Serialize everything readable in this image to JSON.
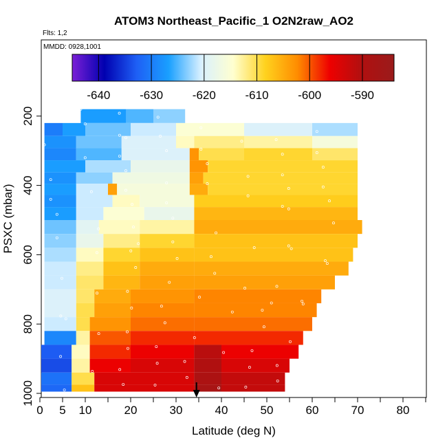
{
  "chart_data": {
    "type": "heatmap",
    "title": "ATOM3 Northeast_Pacific_1 O2N2raw_AO2",
    "subtitle_flights": "Flts: 1,2",
    "subtitle_dates": "MMDD: 0928,1001",
    "xlabel": "Latitude (deg N)",
    "ylabel": "PSXC (mbar)",
    "xlim": [
      0,
      85
    ],
    "ylim": [
      1000,
      0
    ],
    "x_ticks": [
      0,
      5,
      10,
      20,
      30,
      40,
      50,
      60,
      70,
      80
    ],
    "x_minor_ticks": [
      15,
      25,
      35,
      45,
      55,
      65,
      75,
      85
    ],
    "y_ticks": [
      200,
      400,
      600,
      800,
      1000
    ],
    "colorbar": {
      "range": [
        -645,
        -584
      ],
      "ticks": [
        -640,
        -630,
        -620,
        -610,
        -600,
        -590
      ],
      "colors": [
        "#7b1fd6",
        "#0000b0",
        "#1e5ff5",
        "#1aa0ff",
        "#d8f0ff",
        "#ffffd0",
        "#ffd21e",
        "#ff8c00",
        "#ee0000",
        "#b01010",
        "#9a1b1b"
      ]
    },
    "marker": {
      "label": "arrow",
      "x": 34.5
    },
    "rows": [
      {
        "p": 200,
        "segments": [
          [
            9,
            19,
            -627
          ],
          [
            19,
            25,
            -625
          ],
          [
            25,
            32,
            -623
          ]
        ]
      },
      {
        "p": 240,
        "segments": [
          [
            1,
            5,
            -630
          ],
          [
            5,
            10,
            -627
          ],
          [
            10,
            20,
            -624
          ],
          [
            20,
            30,
            -621
          ],
          [
            30,
            45,
            -615
          ],
          [
            45,
            60,
            -620
          ],
          [
            60,
            70,
            -622
          ]
        ]
      },
      {
        "p": 275,
        "segments": [
          [
            1,
            8,
            -628
          ],
          [
            8,
            18,
            -624
          ],
          [
            18,
            30,
            -620
          ],
          [
            30,
            34,
            -614
          ],
          [
            34,
            45,
            -612
          ],
          [
            45,
            60,
            -613
          ],
          [
            60,
            70,
            -616
          ]
        ]
      },
      {
        "p": 310,
        "segments": [
          [
            1,
            8,
            -629
          ],
          [
            8,
            18,
            -625
          ],
          [
            18,
            33,
            -620
          ],
          [
            33,
            35,
            -603
          ],
          [
            35,
            45,
            -610
          ],
          [
            45,
            60,
            -609
          ],
          [
            60,
            70,
            -611
          ]
        ]
      },
      {
        "p": 345,
        "segments": [
          [
            1,
            10,
            -627
          ],
          [
            10,
            20,
            -622
          ],
          [
            20,
            33,
            -618
          ],
          [
            33,
            37,
            -603
          ],
          [
            37,
            50,
            -609
          ],
          [
            50,
            70,
            -609
          ]
        ]
      },
      {
        "p": 380,
        "segments": [
          [
            1,
            8,
            -628
          ],
          [
            8,
            16,
            -623
          ],
          [
            16,
            33,
            -617
          ],
          [
            33,
            36,
            -604
          ],
          [
            36,
            70,
            -609
          ]
        ]
      },
      {
        "p": 410,
        "segments": [
          [
            1,
            8,
            -627
          ],
          [
            8,
            15,
            -621
          ],
          [
            15,
            17,
            -604
          ],
          [
            17,
            33,
            -616
          ],
          [
            33,
            37,
            -605
          ],
          [
            37,
            70,
            -609
          ]
        ]
      },
      {
        "p": 445,
        "segments": [
          [
            1,
            8,
            -628
          ],
          [
            8,
            16,
            -621
          ],
          [
            16,
            22,
            -614
          ],
          [
            22,
            34,
            -616
          ],
          [
            34,
            70,
            -608
          ]
        ]
      },
      {
        "p": 480,
        "segments": [
          [
            1,
            8,
            -627
          ],
          [
            8,
            14,
            -621
          ],
          [
            14,
            23,
            -615
          ],
          [
            23,
            34,
            -618
          ],
          [
            34,
            70,
            -606
          ]
        ]
      },
      {
        "p": 520,
        "segments": [
          [
            1,
            8,
            -624
          ],
          [
            8,
            13,
            -619
          ],
          [
            13,
            22,
            -614
          ],
          [
            22,
            34,
            -613
          ],
          [
            34,
            71,
            -605
          ]
        ]
      },
      {
        "p": 560,
        "segments": [
          [
            1,
            8,
            -623
          ],
          [
            8,
            14,
            -618
          ],
          [
            14,
            22,
            -612
          ],
          [
            22,
            34,
            -609
          ],
          [
            34,
            70,
            -607
          ]
        ]
      },
      {
        "p": 600,
        "segments": [
          [
            1,
            8,
            -622
          ],
          [
            8,
            14,
            -614
          ],
          [
            14,
            22,
            -609
          ],
          [
            22,
            34,
            -607
          ],
          [
            34,
            69,
            -607
          ]
        ]
      },
      {
        "p": 640,
        "segments": [
          [
            1,
            8,
            -621
          ],
          [
            8,
            14,
            -612
          ],
          [
            14,
            22,
            -607
          ],
          [
            22,
            34,
            -605
          ],
          [
            34,
            68,
            -605
          ]
        ]
      },
      {
        "p": 680,
        "segments": [
          [
            1,
            8,
            -621
          ],
          [
            8,
            14,
            -611
          ],
          [
            14,
            22,
            -606
          ],
          [
            22,
            34,
            -604
          ],
          [
            34,
            65,
            -604
          ]
        ]
      },
      {
        "p": 720,
        "segments": [
          [
            1,
            8,
            -620
          ],
          [
            8,
            12,
            -611
          ],
          [
            12,
            20,
            -605
          ],
          [
            20,
            34,
            -603
          ],
          [
            34,
            62,
            -602
          ]
        ]
      },
      {
        "p": 760,
        "segments": [
          [
            1,
            8,
            -620
          ],
          [
            8,
            12,
            -610
          ],
          [
            12,
            20,
            -604
          ],
          [
            20,
            34,
            -602
          ],
          [
            34,
            61,
            -602
          ]
        ]
      },
      {
        "p": 800,
        "segments": [
          [
            1,
            8,
            -621
          ],
          [
            8,
            11,
            -610
          ],
          [
            11,
            20,
            -603
          ],
          [
            20,
            34,
            -601
          ],
          [
            34,
            60,
            -601
          ]
        ]
      },
      {
        "p": 840,
        "segments": [
          [
            1,
            8,
            -629
          ],
          [
            8,
            11,
            -613
          ],
          [
            11,
            20,
            -600
          ],
          [
            20,
            34,
            -598
          ],
          [
            34,
            58,
            -598
          ]
        ]
      },
      {
        "p": 880,
        "segments": [
          [
            0,
            7,
            -633
          ],
          [
            7,
            11,
            -614
          ],
          [
            11,
            20,
            -598
          ],
          [
            20,
            34,
            -596
          ],
          [
            34,
            40,
            -591
          ],
          [
            40,
            57,
            -596
          ]
        ]
      },
      {
        "p": 920,
        "segments": [
          [
            0,
            7,
            -634
          ],
          [
            7,
            11,
            -613
          ],
          [
            11,
            20,
            -596
          ],
          [
            20,
            34,
            -594
          ],
          [
            34,
            40,
            -590
          ],
          [
            40,
            55,
            -594
          ]
        ]
      },
      {
        "p": 960,
        "segments": [
          [
            0,
            7,
            -631
          ],
          [
            7,
            12,
            -610
          ],
          [
            12,
            20,
            -594
          ],
          [
            20,
            34,
            -594
          ],
          [
            34,
            40,
            -589
          ],
          [
            40,
            54,
            -592
          ]
        ]
      },
      {
        "p": 990,
        "segments": [
          [
            0,
            7,
            -632
          ],
          [
            7,
            12,
            -607
          ],
          [
            12,
            20,
            -594
          ],
          [
            20,
            34,
            -594
          ],
          [
            34,
            40,
            -588
          ],
          [
            40,
            54,
            -592
          ]
        ]
      }
    ]
  }
}
